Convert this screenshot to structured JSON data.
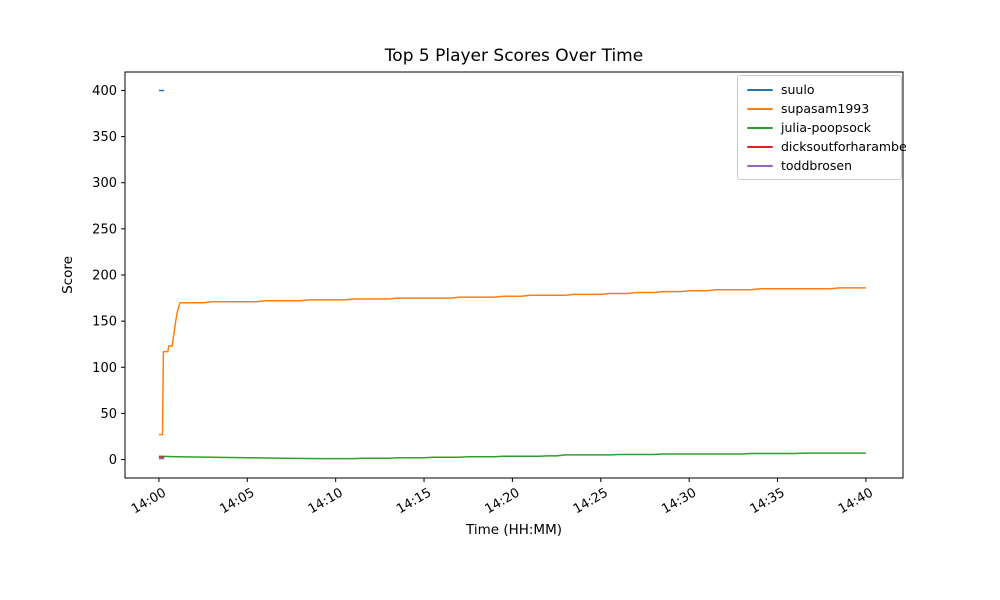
{
  "chart_data": {
    "type": "line",
    "title": "Top 5 Player Scores Over Time",
    "xlabel": "Time (HH:MM)",
    "ylabel": "Score",
    "legend_position": "upper right",
    "grid": false,
    "x_unit": "minutes after 14:00",
    "xlim_minutes": [
      -1.92,
      42.1
    ],
    "ylim": [
      -20,
      420
    ],
    "x_ticks_minutes": [
      0,
      5,
      10,
      15,
      20,
      25,
      30,
      35,
      40
    ],
    "x_tick_labels": [
      "14:00",
      "14:05",
      "14:10",
      "14:15",
      "14:20",
      "14:25",
      "14:30",
      "14:35",
      "14:40"
    ],
    "x_tick_rotation_deg": 30,
    "y_ticks": [
      0,
      50,
      100,
      150,
      200,
      250,
      300,
      350,
      400
    ],
    "y_tick_labels": [
      "0",
      "50",
      "100",
      "150",
      "200",
      "250",
      "300",
      "350",
      "400"
    ],
    "axis_color": "#000000",
    "series": [
      {
        "name": "suulo",
        "color": "#1f77b4",
        "points": [
          [
            0,
            400
          ],
          [
            0.3,
            400
          ]
        ]
      },
      {
        "name": "supasam1993",
        "color": "#ff7f0e",
        "points": [
          [
            0,
            27
          ],
          [
            0.2,
            27
          ],
          [
            0.25,
            117
          ],
          [
            0.5,
            117
          ],
          [
            0.55,
            123
          ],
          [
            0.75,
            123
          ],
          [
            0.85,
            137
          ],
          [
            0.95,
            150
          ],
          [
            1.05,
            161
          ],
          [
            1.2,
            170
          ],
          [
            2.5,
            170
          ],
          [
            3,
            171
          ],
          [
            5.5,
            171
          ],
          [
            6,
            172
          ],
          [
            8,
            172
          ],
          [
            8.5,
            173
          ],
          [
            10.5,
            173
          ],
          [
            11,
            174
          ],
          [
            13,
            174
          ],
          [
            13.5,
            175
          ],
          [
            16.5,
            175
          ],
          [
            17,
            176
          ],
          [
            19,
            176
          ],
          [
            19.5,
            177
          ],
          [
            20.5,
            177
          ],
          [
            21,
            178
          ],
          [
            23,
            178
          ],
          [
            23.5,
            179
          ],
          [
            25,
            179
          ],
          [
            25.5,
            180
          ],
          [
            26.5,
            180
          ],
          [
            27,
            181
          ],
          [
            28,
            181
          ],
          [
            28.5,
            182
          ],
          [
            29.5,
            182
          ],
          [
            30,
            183
          ],
          [
            31,
            183
          ],
          [
            31.5,
            184
          ],
          [
            33.5,
            184
          ],
          [
            34,
            185
          ],
          [
            38,
            185
          ],
          [
            38.5,
            186
          ],
          [
            40,
            186
          ]
        ]
      },
      {
        "name": "julia-poopsock",
        "color": "#2ca02c",
        "points": [
          [
            0,
            3.5
          ],
          [
            1,
            3
          ],
          [
            3,
            2.5
          ],
          [
            5,
            2
          ],
          [
            7,
            1.5
          ],
          [
            9,
            1
          ],
          [
            11,
            1
          ],
          [
            11.5,
            1.5
          ],
          [
            13,
            1.5
          ],
          [
            13.5,
            2
          ],
          [
            15,
            2
          ],
          [
            15.5,
            2.5
          ],
          [
            17,
            2.5
          ],
          [
            17.5,
            3
          ],
          [
            19,
            3
          ],
          [
            19.5,
            3.5
          ],
          [
            21.5,
            3.5
          ],
          [
            22,
            4
          ],
          [
            22.5,
            4
          ],
          [
            23,
            5
          ],
          [
            25.5,
            5
          ],
          [
            26,
            5.5
          ],
          [
            28,
            5.5
          ],
          [
            28.5,
            6
          ],
          [
            33,
            6
          ],
          [
            33.5,
            6.5
          ],
          [
            36,
            6.5
          ],
          [
            36.5,
            7
          ],
          [
            40,
            7
          ]
        ]
      },
      {
        "name": "dicksoutforharambe",
        "color": "#d62728",
        "points": [
          [
            0,
            2.5
          ],
          [
            0.3,
            2.5
          ]
        ]
      },
      {
        "name": "toddbrosen",
        "color": "#9467bd",
        "points": [
          [
            0,
            1
          ],
          [
            0.3,
            1
          ]
        ]
      }
    ]
  }
}
